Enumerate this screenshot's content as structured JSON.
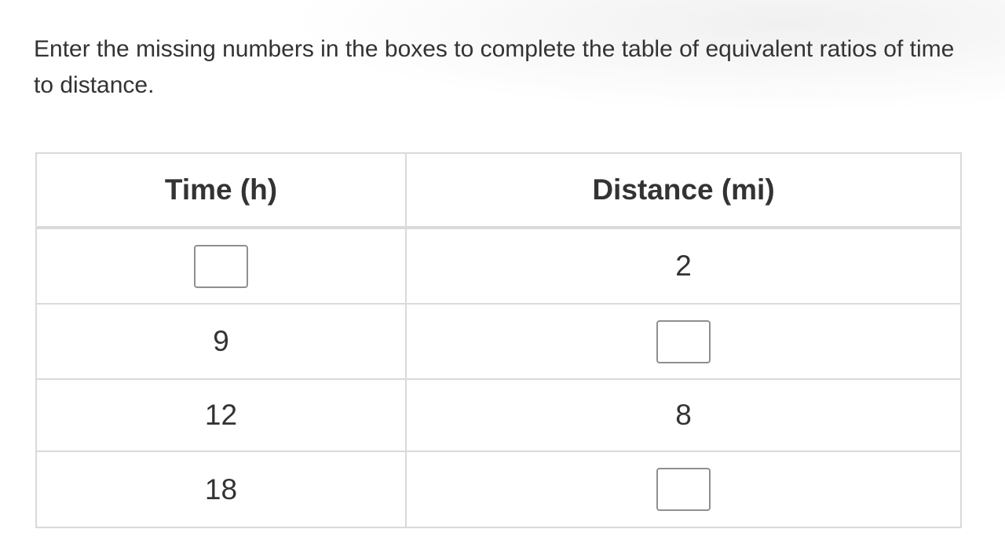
{
  "prompt": "Enter the missing numbers in the boxes to complete the table of equivalent ratios of time to distance.",
  "table": {
    "headers": [
      "Time (h)",
      "Distance (mi)"
    ],
    "rows": [
      {
        "time": "",
        "time_input": true,
        "distance": "2",
        "distance_input": false
      },
      {
        "time": "9",
        "time_input": false,
        "distance": "",
        "distance_input": true
      },
      {
        "time": "12",
        "time_input": false,
        "distance": "8",
        "distance_input": false
      },
      {
        "time": "18",
        "time_input": false,
        "distance": "",
        "distance_input": true
      }
    ]
  }
}
